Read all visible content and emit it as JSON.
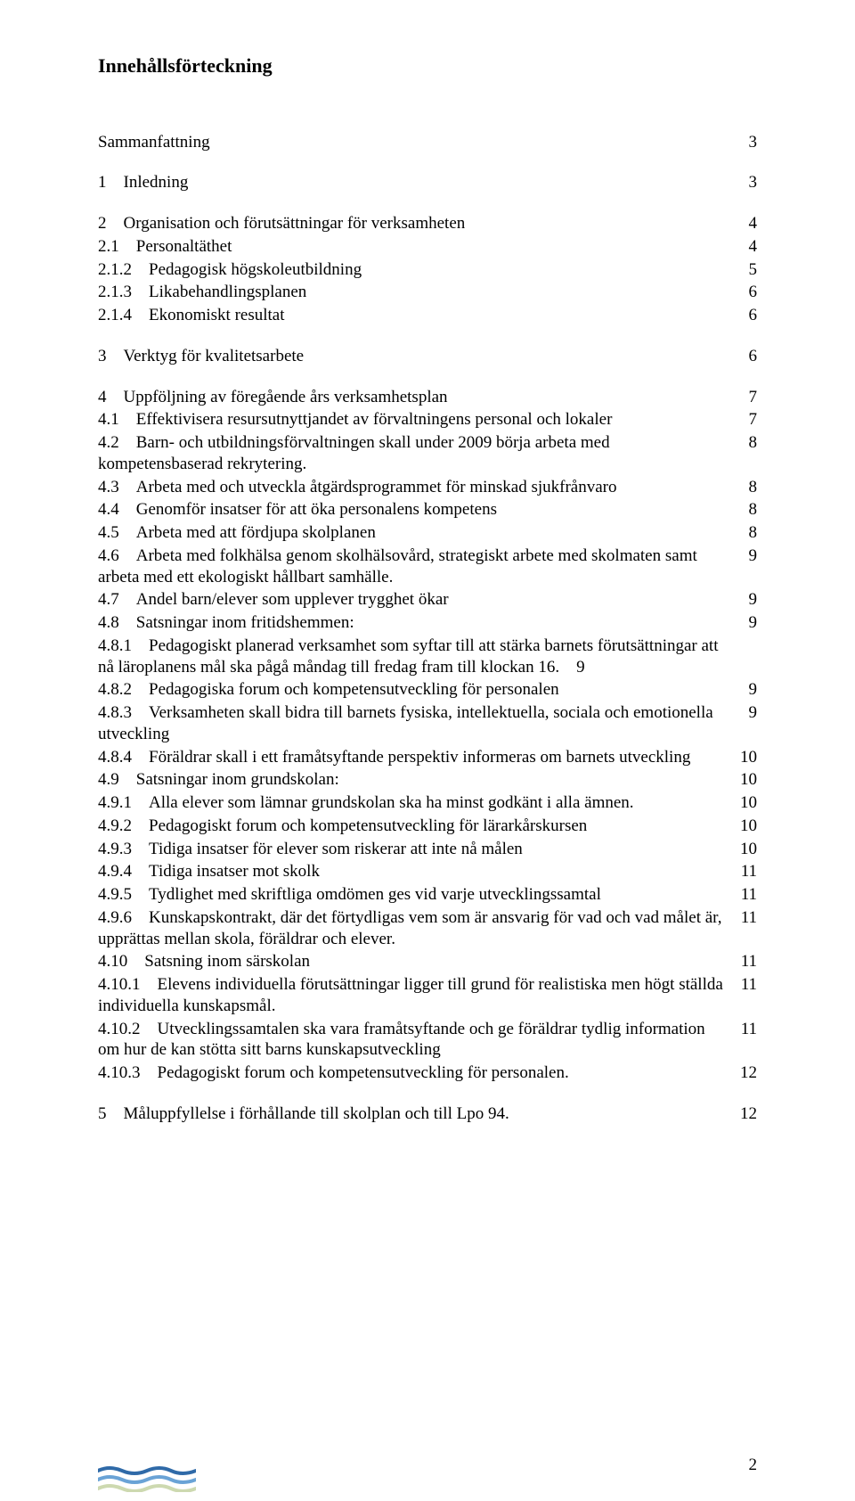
{
  "title": "Innehållsförteckning",
  "footer_page": "2",
  "wave_colors": [
    "#2f6aa8",
    "#6aa3d6",
    "#cdd9b0"
  ],
  "toc": [
    {
      "type": "gap"
    },
    {
      "label": "Sammanfattning",
      "page": "3"
    },
    {
      "type": "gap"
    },
    {
      "label": "1 Inledning",
      "page": "3"
    },
    {
      "type": "gap"
    },
    {
      "label": "2 Organisation och förutsättningar för verksamheten",
      "page": "4"
    },
    {
      "label": "2.1 Personaltäthet",
      "page": "4"
    },
    {
      "label": "2.1.2 Pedagogisk högskoleutbildning",
      "page": "5"
    },
    {
      "label": "2.1.3 Likabehandlingsplanen",
      "page": "6"
    },
    {
      "label": "2.1.4 Ekonomiskt resultat",
      "page": "6"
    },
    {
      "type": "gap"
    },
    {
      "label": "3 Verktyg för kvalitetsarbete",
      "page": "6"
    },
    {
      "type": "gap"
    },
    {
      "label": "4 Uppföljning av föregående års verksamhetsplan",
      "page": "7"
    },
    {
      "label": "4.1 Effektivisera resursutnyttjandet av förvaltningens personal och lokaler",
      "page": "7"
    },
    {
      "label": "4.2 Barn- och utbildningsförvaltningen skall under 2009 börja arbeta med kompetensbaserad rekrytering.",
      "page": "8"
    },
    {
      "label": "4.3 Arbeta med och utveckla åtgärdsprogrammet för minskad sjukfrånvaro",
      "page": "8"
    },
    {
      "label": "4.4 Genomför insatser för att öka personalens kompetens",
      "page": "8"
    },
    {
      "label": "4.5 Arbeta med att fördjupa skolplanen",
      "page": "8"
    },
    {
      "label": "4.6 Arbeta med folkhälsa genom skolhälsovård, strategiskt arbete med skolmaten samt arbeta med ett ekologiskt hållbart samhälle.",
      "page": "9"
    },
    {
      "label": "4.7 Andel barn/elever som upplever trygghet ökar",
      "page": "9"
    },
    {
      "label": "4.8 Satsningar inom fritidshemmen:",
      "page": "9"
    },
    {
      "label": "4.8.1 Pedagogiskt planerad verksamhet som syftar till att stärka barnets förutsättningar att nå läroplanens mål ska pågå måndag till fredag fram till klockan 16. 9",
      "page": ""
    },
    {
      "label": "4.8.2 Pedagogiska forum och kompetensutveckling för personalen",
      "page": "9"
    },
    {
      "label": "4.8.3 Verksamheten skall bidra till barnets fysiska, intellektuella, sociala och emotionella utveckling",
      "page": "9"
    },
    {
      "label": "4.8.4 Föräldrar skall i ett framåtsyftande perspektiv informeras om barnets utveckling",
      "page": "10"
    },
    {
      "label": "4.9 Satsningar inom grundskolan:",
      "page": "10"
    },
    {
      "label": "4.9.1 Alla elever som lämnar grundskolan ska ha minst godkänt i alla ämnen.",
      "page": "10"
    },
    {
      "label": "4.9.2 Pedagogiskt forum och kompetensutveckling för lärarkårskursen",
      "page": "10"
    },
    {
      "label": "4.9.3 Tidiga insatser för elever som riskerar att inte nå målen",
      "page": "10"
    },
    {
      "label": "4.9.4 Tidiga insatser mot skolk",
      "page": "11"
    },
    {
      "label": "4.9.5 Tydlighet med skriftliga omdömen ges vid varje utvecklingssamtal",
      "page": "11"
    },
    {
      "label": "4.9.6 Kunskapskontrakt, där det förtydligas vem som är ansvarig för vad och vad målet är, upprättas mellan skola, föräldrar och elever.",
      "page": "11"
    },
    {
      "label": "4.10 Satsning inom särskolan",
      "page": "11"
    },
    {
      "label": "4.10.1 Elevens individuella förutsättningar ligger till grund för realistiska men högt ställda individuella kunskapsmål.",
      "page": "11"
    },
    {
      "label": "4.10.2 Utvecklingssamtalen ska vara framåtsyftande och ge föräldrar tydlig information om hur de kan stötta sitt barns kunskapsutveckling",
      "page": "11"
    },
    {
      "label": "4.10.3 Pedagogiskt forum och kompetensutveckling för personalen.",
      "page": "12"
    },
    {
      "type": "gap"
    },
    {
      "label": "5 Måluppfyllelse i förhållande till skolplan och till Lpo 94.",
      "page": "12"
    }
  ]
}
